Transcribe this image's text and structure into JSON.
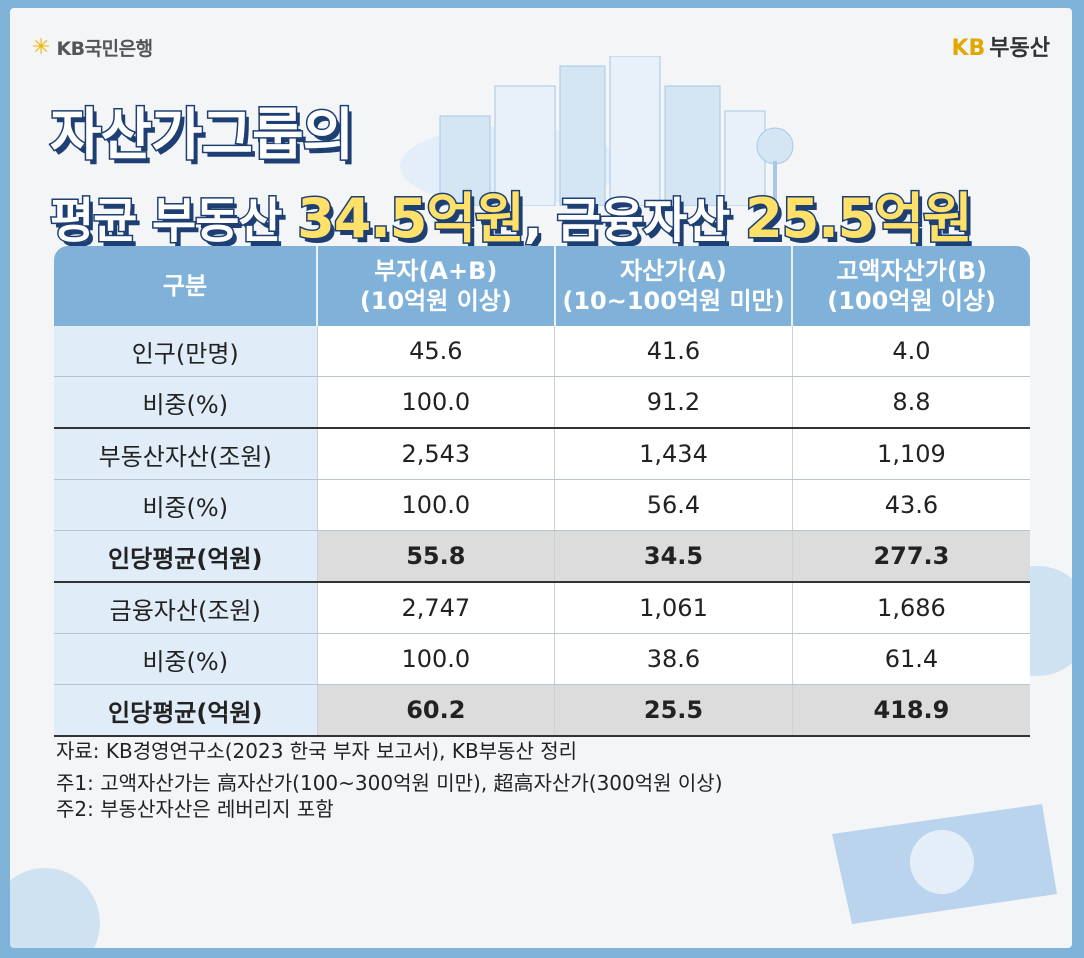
{
  "brand": {
    "left_logo": "KB국민은행",
    "right_logo_kb": "KB",
    "right_logo_text": "부동산"
  },
  "headline": {
    "line1": "자산가그룹의",
    "line2_a": "평균 부동산 ",
    "line2_b": "34.5억원",
    "line2_c": ", 금융자산 ",
    "line2_d": "25.5억원"
  },
  "table": {
    "headers": [
      {
        "line1": "구분",
        "line2": ""
      },
      {
        "line1": "부자(A+B)",
        "line2": "(10억원 이상)"
      },
      {
        "line1": "자산가(A)",
        "line2": "(10~100억원 미만)"
      },
      {
        "line1": "고액자산가(B)",
        "line2": "(100억원 이상)"
      }
    ],
    "rows": [
      {
        "label": "인구(만명)",
        "a": "45.6",
        "b": "41.6",
        "c": "4.0"
      },
      {
        "label": "비중(%)",
        "a": "100.0",
        "b": "91.2",
        "c": "8.8"
      },
      {
        "label": "부동산자산(조원)",
        "a": "2,543",
        "b": "1,434",
        "c": "1,109"
      },
      {
        "label": "비중(%)",
        "a": "100.0",
        "b": "56.4",
        "c": "43.6"
      },
      {
        "label": "인당평균(억원)",
        "a": "55.8",
        "b": "34.5",
        "c": "277.3"
      },
      {
        "label": "금융자산(조원)",
        "a": "2,747",
        "b": "1,061",
        "c": "1,686"
      },
      {
        "label": "비중(%)",
        "a": "100.0",
        "b": "38.6",
        "c": "61.4"
      },
      {
        "label": "인당평균(억원)",
        "a": "60.2",
        "b": "25.5",
        "c": "418.9"
      }
    ]
  },
  "notes": {
    "source": "자료: KB경영연구소(2023 한국 부자 보고서), KB부동산 정리",
    "note1": "주1: 고액자산가는 高자산가(100~300억원 미만), 超高자산가(300억원 이상)",
    "note2": "주2: 부동산자산은 레버리지 포함"
  },
  "icons": [
    "kb-star-icon",
    "city-illustration",
    "won-coin-icon",
    "won-bill-icon"
  ],
  "colors": {
    "header_blue": "#7fb1d9",
    "title_navy": "#1d3f73",
    "highlight_yellow": "#ffe169",
    "frame_blue": "#7fb4d8"
  }
}
